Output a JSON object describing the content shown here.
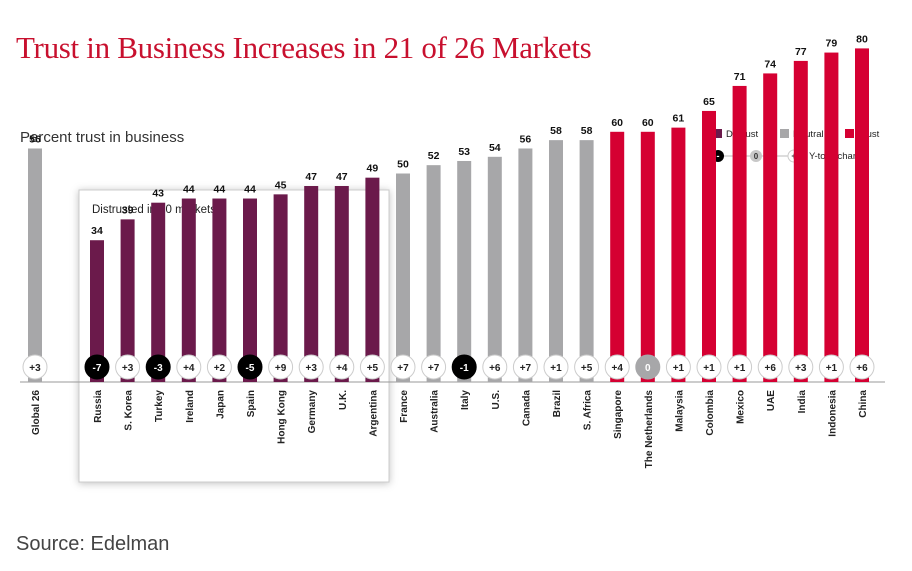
{
  "header": {
    "title": "Trust in Business Increases in 21 of 26 Markets",
    "subtitle": "Percent trust in business"
  },
  "footer": {
    "source": "Source: Edelman"
  },
  "legend": {
    "distrust": "Distrust",
    "neutral": "Neutral",
    "trust": "Trust",
    "change_label": "Y-to-Y change",
    "minus": "-",
    "zero": "0",
    "plus": "+"
  },
  "highlight_box": {
    "label": "Distrusted in 10 markets"
  },
  "colors": {
    "distrust": "#6b1a4b",
    "neutral": "#a7a7a9",
    "trust": "#d50032",
    "title": "#c8102e"
  },
  "chart_data": {
    "type": "bar",
    "title": "Trust in Business Increases in 21 of 26 Markets",
    "ylabel": "Percent trust in business",
    "ylim": [
      0,
      100
    ],
    "categories": [
      "Global 26",
      "Russia",
      "S. Korea",
      "Turkey",
      "Ireland",
      "Japan",
      "Spain",
      "Hong Kong",
      "Germany",
      "U.K.",
      "Argentina",
      "France",
      "Australia",
      "Italy",
      "U.S.",
      "Canada",
      "Brazil",
      "S. Africa",
      "Singapore",
      "The Netherlands",
      "Malaysia",
      "Colombia",
      "Mexico",
      "UAE",
      "India",
      "Indonesia",
      "China"
    ],
    "values": [
      56,
      34,
      39,
      43,
      44,
      44,
      44,
      45,
      47,
      47,
      49,
      50,
      52,
      53,
      54,
      56,
      58,
      58,
      60,
      60,
      61,
      65,
      71,
      74,
      77,
      79,
      80
    ],
    "changes": [
      "+3",
      "-7",
      "+3",
      "-3",
      "+4",
      "+2",
      "-5",
      "+9",
      "+3",
      "+4",
      "+5",
      "+7",
      "+7",
      "-1",
      "+6",
      "+7",
      "+1",
      "+5",
      "+4",
      "0",
      "+1",
      "+1",
      "+1",
      "+6",
      "+3",
      "+1",
      "+6"
    ],
    "levels": [
      "neutral",
      "distrust",
      "distrust",
      "distrust",
      "distrust",
      "distrust",
      "distrust",
      "distrust",
      "distrust",
      "distrust",
      "distrust",
      "neutral",
      "neutral",
      "neutral",
      "neutral",
      "neutral",
      "neutral",
      "neutral",
      "trust",
      "trust",
      "trust",
      "trust",
      "trust",
      "trust",
      "trust",
      "trust",
      "trust"
    ],
    "legend": [
      "Distrust",
      "Neutral",
      "Trust"
    ],
    "source": "Source: Edelman"
  }
}
